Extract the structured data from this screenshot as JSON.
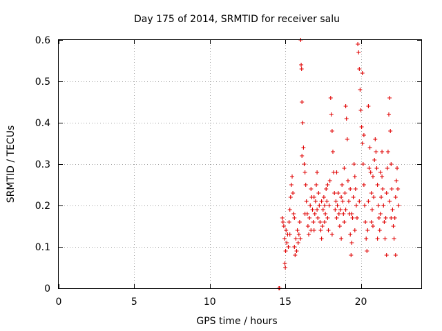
{
  "chart_data": {
    "type": "scatter",
    "title": "Day 175 of 2014, SRMTID for receiver salu",
    "xlabel": "GPS time / hours",
    "ylabel": "SRMTID / TECUs",
    "xlim": [
      0,
      24
    ],
    "ylim": [
      0,
      0.6
    ],
    "xticks": [
      0,
      5,
      10,
      15,
      20
    ],
    "yticks": [
      0,
      0.1,
      0.2,
      0.3,
      0.4,
      0.5,
      0.6
    ],
    "xtick_labels": [
      "0",
      "5",
      "10",
      "15",
      "20"
    ],
    "ytick_labels": [
      "0",
      "0.1",
      "0.2",
      "0.3",
      "0.4",
      "0.5",
      "0.6"
    ],
    "grid": true,
    "marker": "+",
    "color": "#e00000",
    "series": [
      {
        "name": "SRMTID",
        "points": [
          [
            14.58,
            0.0
          ],
          [
            14.62,
            0.0
          ],
          [
            14.8,
            0.17
          ],
          [
            14.85,
            0.16
          ],
          [
            14.9,
            0.15
          ],
          [
            14.95,
            0.12
          ],
          [
            14.97,
            0.06
          ],
          [
            15.0,
            0.05
          ],
          [
            15.02,
            0.09
          ],
          [
            15.05,
            0.14
          ],
          [
            15.1,
            0.11
          ],
          [
            15.15,
            0.13
          ],
          [
            15.2,
            0.1
          ],
          [
            15.25,
            0.16
          ],
          [
            15.3,
            0.19
          ],
          [
            15.35,
            0.22
          ],
          [
            15.4,
            0.25
          ],
          [
            15.45,
            0.27
          ],
          [
            15.5,
            0.23
          ],
          [
            15.55,
            0.18
          ],
          [
            15.6,
            0.1
          ],
          [
            15.65,
            0.08
          ],
          [
            15.7,
            0.12
          ],
          [
            15.75,
            0.09
          ],
          [
            15.8,
            0.14
          ],
          [
            15.85,
            0.11
          ],
          [
            15.9,
            0.13
          ],
          [
            15.95,
            0.16
          ],
          [
            16.0,
            0.12
          ],
          [
            16.02,
            0.6
          ],
          [
            16.05,
            0.54
          ],
          [
            16.08,
            0.53
          ],
          [
            16.1,
            0.45
          ],
          [
            16.15,
            0.4
          ],
          [
            16.2,
            0.34
          ],
          [
            16.25,
            0.3
          ],
          [
            16.3,
            0.28
          ],
          [
            16.35,
            0.25
          ],
          [
            16.4,
            0.21
          ],
          [
            16.45,
            0.18
          ],
          [
            16.5,
            0.15
          ],
          [
            16.55,
            0.13
          ],
          [
            16.6,
            0.17
          ],
          [
            16.65,
            0.2
          ],
          [
            16.7,
            0.24
          ],
          [
            16.75,
            0.22
          ],
          [
            16.8,
            0.19
          ],
          [
            16.85,
            0.16
          ],
          [
            16.9,
            0.14
          ],
          [
            16.95,
            0.18
          ],
          [
            17.0,
            0.21
          ],
          [
            17.05,
            0.25
          ],
          [
            17.1,
            0.19
          ],
          [
            17.15,
            0.17
          ],
          [
            17.2,
            0.23
          ],
          [
            17.25,
            0.2
          ],
          [
            17.3,
            0.16
          ],
          [
            17.35,
            0.14
          ],
          [
            17.4,
            0.12
          ],
          [
            17.45,
            0.15
          ],
          [
            17.5,
            0.19
          ],
          [
            17.55,
            0.22
          ],
          [
            17.6,
            0.2
          ],
          [
            17.65,
            0.18
          ],
          [
            17.7,
            0.24
          ],
          [
            17.75,
            0.21
          ],
          [
            17.8,
            0.17
          ],
          [
            17.85,
            0.14
          ],
          [
            17.9,
            0.2
          ],
          [
            17.95,
            0.26
          ],
          [
            18.0,
            0.46
          ],
          [
            18.05,
            0.42
          ],
          [
            18.1,
            0.38
          ],
          [
            18.15,
            0.33
          ],
          [
            18.2,
            0.28
          ],
          [
            18.25,
            0.23
          ],
          [
            18.3,
            0.19
          ],
          [
            18.35,
            0.21
          ],
          [
            18.4,
            0.17
          ],
          [
            18.45,
            0.2
          ],
          [
            18.5,
            0.23
          ],
          [
            18.55,
            0.18
          ],
          [
            18.6,
            0.15
          ],
          [
            18.65,
            0.19
          ],
          [
            18.7,
            0.22
          ],
          [
            18.75,
            0.25
          ],
          [
            18.8,
            0.21
          ],
          [
            18.85,
            0.18
          ],
          [
            18.9,
            0.16
          ],
          [
            18.95,
            0.23
          ],
          [
            19.0,
            0.44
          ],
          [
            19.05,
            0.41
          ],
          [
            19.1,
            0.36
          ],
          [
            19.15,
            0.26
          ],
          [
            19.2,
            0.21
          ],
          [
            19.25,
            0.18
          ],
          [
            19.3,
            0.13
          ],
          [
            19.35,
            0.08
          ],
          [
            19.4,
            0.11
          ],
          [
            19.45,
            0.17
          ],
          [
            19.5,
            0.22
          ],
          [
            19.55,
            0.3
          ],
          [
            19.6,
            0.27
          ],
          [
            19.65,
            0.24
          ],
          [
            19.7,
            0.2
          ],
          [
            19.75,
            0.17
          ],
          [
            19.8,
            0.59
          ],
          [
            19.85,
            0.57
          ],
          [
            19.9,
            0.53
          ],
          [
            19.95,
            0.48
          ],
          [
            20.0,
            0.43
          ],
          [
            20.05,
            0.39
          ],
          [
            20.1,
            0.35
          ],
          [
            20.15,
            0.3
          ],
          [
            20.2,
            0.25
          ],
          [
            20.25,
            0.2
          ],
          [
            20.3,
            0.16
          ],
          [
            20.35,
            0.12
          ],
          [
            20.4,
            0.09
          ],
          [
            20.45,
            0.14
          ],
          [
            20.5,
            0.21
          ],
          [
            20.55,
            0.29
          ],
          [
            20.6,
            0.34
          ],
          [
            20.65,
            0.28
          ],
          [
            20.7,
            0.23
          ],
          [
            20.75,
            0.19
          ],
          [
            20.8,
            0.15
          ],
          [
            20.85,
            0.22
          ],
          [
            20.9,
            0.31
          ],
          [
            20.95,
            0.36
          ],
          [
            21.0,
            0.33
          ],
          [
            21.05,
            0.29
          ],
          [
            21.1,
            0.25
          ],
          [
            21.15,
            0.2
          ],
          [
            21.2,
            0.17
          ],
          [
            21.25,
            0.14
          ],
          [
            21.3,
            0.18
          ],
          [
            21.35,
            0.22
          ],
          [
            21.4,
            0.27
          ],
          [
            21.45,
            0.24
          ],
          [
            21.5,
            0.2
          ],
          [
            21.55,
            0.16
          ],
          [
            21.6,
            0.12
          ],
          [
            21.65,
            0.17
          ],
          [
            21.7,
            0.23
          ],
          [
            21.75,
            0.29
          ],
          [
            21.8,
            0.33
          ],
          [
            21.85,
            0.42
          ],
          [
            21.9,
            0.46
          ],
          [
            21.95,
            0.38
          ],
          [
            22.0,
            0.3
          ],
          [
            22.05,
            0.24
          ],
          [
            22.1,
            0.19
          ],
          [
            22.15,
            0.15
          ],
          [
            22.2,
            0.12
          ],
          [
            22.25,
            0.17
          ],
          [
            22.3,
            0.22
          ],
          [
            22.35,
            0.26
          ],
          [
            22.4,
            0.29
          ],
          [
            22.45,
            0.24
          ],
          [
            22.5,
            0.2
          ],
          [
            15.3,
            0.13
          ],
          [
            15.6,
            0.17
          ],
          [
            16.1,
            0.32
          ],
          [
            16.3,
            0.18
          ],
          [
            16.7,
            0.14
          ],
          [
            17.1,
            0.28
          ],
          [
            17.4,
            0.21
          ],
          [
            17.8,
            0.25
          ],
          [
            18.1,
            0.13
          ],
          [
            18.4,
            0.28
          ],
          [
            18.7,
            0.12
          ],
          [
            19.0,
            0.19
          ],
          [
            19.3,
            0.24
          ],
          [
            19.6,
            0.14
          ],
          [
            19.9,
            0.21
          ],
          [
            20.2,
            0.37
          ],
          [
            20.5,
            0.44
          ],
          [
            20.8,
            0.27
          ],
          [
            21.1,
            0.12
          ],
          [
            21.4,
            0.33
          ],
          [
            21.7,
            0.08
          ],
          [
            22.0,
            0.17
          ],
          [
            22.3,
            0.08
          ],
          [
            16.9,
            0.22
          ],
          [
            17.6,
            0.16
          ],
          [
            18.9,
            0.29
          ],
          [
            19.4,
            0.18
          ],
          [
            20.1,
            0.52
          ],
          [
            20.7,
            0.16
          ],
          [
            21.3,
            0.28
          ],
          [
            21.9,
            0.21
          ]
        ]
      }
    ]
  }
}
